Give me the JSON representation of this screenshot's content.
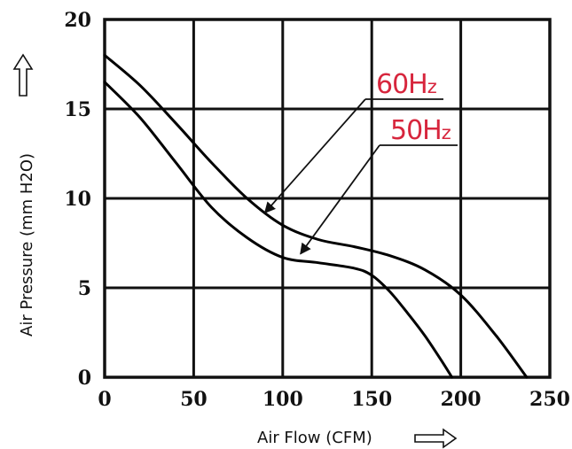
{
  "chart_data": {
    "type": "line",
    "xlabel": "Air Flow (CFM)",
    "ylabel": "Air Pressure (mm H2O)",
    "xlim": [
      0,
      250
    ],
    "ylim": [
      0,
      20
    ],
    "xticks": [
      0,
      50,
      100,
      150,
      200,
      250
    ],
    "yticks": [
      0,
      5,
      10,
      15,
      20
    ],
    "grid": true,
    "legend": "annotations",
    "series": [
      {
        "name": "60Hz",
        "name_main": "60H",
        "name_sub": "z",
        "color": "#000000",
        "label_color": "#d7263d",
        "x": [
          0,
          20,
          40,
          60,
          80,
          100,
          120,
          140,
          160,
          180,
          200,
          220,
          237
        ],
        "y": [
          18.0,
          16.3,
          14.2,
          12.0,
          10.0,
          8.5,
          7.7,
          7.3,
          6.8,
          6.0,
          4.6,
          2.3,
          0
        ]
      },
      {
        "name": "50Hz",
        "name_main": "50H",
        "name_sub": "z",
        "color": "#000000",
        "label_color": "#d7263d",
        "x": [
          0,
          20,
          40,
          60,
          80,
          100,
          120,
          140,
          150,
          160,
          170,
          180,
          190,
          195
        ],
        "y": [
          16.5,
          14.5,
          12.0,
          9.5,
          7.8,
          6.7,
          6.4,
          6.1,
          5.7,
          4.8,
          3.6,
          2.3,
          0.8,
          0
        ]
      }
    ]
  }
}
